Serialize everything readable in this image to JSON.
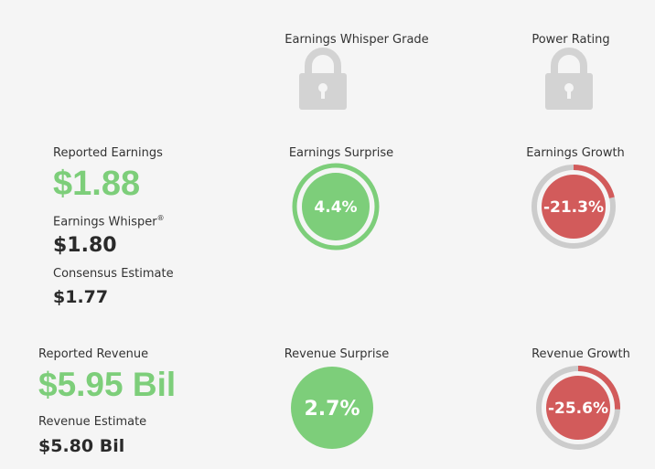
{
  "headers": {
    "grade": "Earnings Whisper Grade",
    "power": "Power Rating"
  },
  "earnings": {
    "reported_label": "Reported Earnings",
    "reported_value": "$1.88",
    "whisper_label": "Earnings Whisper",
    "whisper_sup": "®",
    "whisper_value": "$1.80",
    "consensus_label": "Consensus Estimate",
    "consensus_value": "$1.77",
    "surprise_label": "Earnings Surprise",
    "surprise_value": "4.4%",
    "growth_label": "Earnings Growth",
    "growth_value": "-21.3%",
    "growth_pct": 21.3
  },
  "revenue": {
    "reported_label": "Reported Revenue",
    "reported_value": "$5.95 Bil",
    "estimate_label": "Revenue Estimate",
    "estimate_value": "$5.80 Bil",
    "surprise_label": "Revenue Surprise",
    "surprise_value": "2.7%",
    "growth_label": "Revenue Growth",
    "growth_value": "-25.6%",
    "growth_pct": 25.6
  },
  "colors": {
    "positive": "#7dce7a",
    "negative": "#d25b5b",
    "track": "#cccccc",
    "lock": "#d3d3d3"
  },
  "icons": [
    "lock-icon",
    "lock-icon"
  ]
}
